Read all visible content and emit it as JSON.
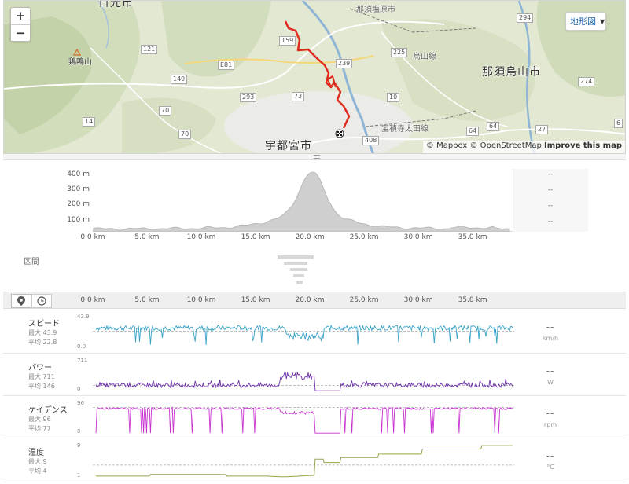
{
  "map": {
    "zoom_in_label": "+",
    "zoom_out_label": "−",
    "map_type_label": "地形図",
    "attribution": {
      "mapbox": "© Mapbox",
      "osm": "© OpenStreetMap",
      "improve": "Improve this map"
    },
    "places": {
      "city_main": "宇都宮市",
      "city_east": "那須烏山市",
      "city_north_partial": "日光市",
      "mountain": "鶏鳴山",
      "rail_north": "烏山線",
      "rail_east": "宝積寺太田線",
      "rail_top": "那須塩原市"
    },
    "route_numbers": [
      "121",
      "149",
      "70",
      "14",
      "70",
      "293",
      "E81",
      "73",
      "159",
      "239",
      "225",
      "10",
      "408",
      "64",
      "64",
      "27",
      "294",
      "274",
      "6"
    ],
    "route_color": "#e02a1e"
  },
  "elevation": {
    "y_labels": [
      "400 m",
      "300 m",
      "200 m",
      "100 m"
    ],
    "x_labels": [
      "0.0 km",
      "5.0 km",
      "10.0 km",
      "15.0 km",
      "20.0 km",
      "25.0 km",
      "30.0 km",
      "35.0 km"
    ],
    "side_values": [
      "--",
      "--",
      "--",
      "--"
    ],
    "fill_color": "#cfcfcf"
  },
  "segments": {
    "label": "区間"
  },
  "streams_header": {
    "x_labels": [
      "0.0 km",
      "5.0 km",
      "10.0 km",
      "15.0 km",
      "20.0 km",
      "25.0 km",
      "30.0 km",
      "35.0 km"
    ],
    "distance_icon": "map-pin-icon",
    "time_icon": "clock-icon"
  },
  "streams": [
    {
      "name": "スピード",
      "max": "最大 43.9",
      "avg": "平均 22.8",
      "axis_top": "43.9",
      "axis_bottom": "0.0",
      "value": "--",
      "unit": "km/h",
      "color": "#3aa3c8"
    },
    {
      "name": "パワー",
      "max": "最大 711",
      "avg": "平均 146",
      "axis_top": "711",
      "axis_bottom": "0",
      "value": "--",
      "unit": "W",
      "color": "#6a2fa8"
    },
    {
      "name": "ケイデンス",
      "max": "最大 96",
      "avg": "平均 77",
      "axis_top": "96",
      "axis_bottom": "0",
      "value": "--",
      "unit": "rpm",
      "color": "#c833d0"
    },
    {
      "name": "温度",
      "max": "最大 9",
      "avg": "平均 4",
      "axis_top": "9",
      "axis_bottom": "1",
      "value": "--",
      "unit": "°C",
      "color": "#9aa24a"
    }
  ]
}
